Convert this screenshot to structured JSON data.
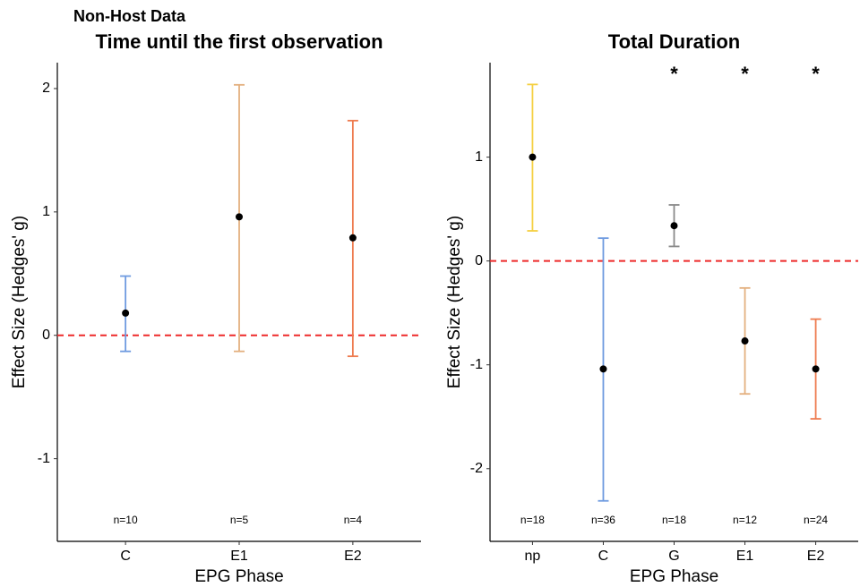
{
  "suptitle": "Non-Host Data",
  "chart_data": [
    {
      "type": "errorbar",
      "title": "Time until the first observation",
      "x_label": "EPG Phase",
      "y_label": "Effect Size (Hedges' g)",
      "categories": [
        "C",
        "E1",
        "E2"
      ],
      "values": [
        0.18,
        0.96,
        0.79
      ],
      "lower": [
        -0.13,
        -0.13,
        -0.17
      ],
      "upper": [
        0.48,
        2.03,
        1.74
      ],
      "colors": [
        "#6f9be0",
        "#e3b07f",
        "#ee7b4f"
      ],
      "n_labels": [
        "n=10",
        "n=5",
        "n=4"
      ],
      "ylim": [
        -1.67,
        2.21
      ],
      "yticks": [
        -1,
        0,
        1,
        2
      ],
      "hline": 0,
      "hline_color": "#ee2a2a"
    },
    {
      "type": "errorbar",
      "title": "Total Duration",
      "x_label": "EPG Phase",
      "y_label": "Effect Size (Hedges' g)",
      "categories": [
        "np",
        "C",
        "G",
        "E1",
        "E2"
      ],
      "values": [
        1.0,
        -1.04,
        0.34,
        -0.77,
        -1.04
      ],
      "lower": [
        0.29,
        -2.31,
        0.14,
        -1.28,
        -1.52
      ],
      "upper": [
        1.7,
        0.22,
        0.54,
        -0.26,
        -0.56
      ],
      "colors": [
        "#f5cf40",
        "#6f9be0",
        "#8a8a8a",
        "#e3b07f",
        "#ee7b4f"
      ],
      "n_labels": [
        "n=18",
        "n=36",
        "n=18",
        "n=12",
        "n=24"
      ],
      "significance": [
        null,
        null,
        "*",
        "*",
        "*"
      ],
      "ylim": [
        -2.7,
        1.91
      ],
      "yticks": [
        -2,
        -1,
        0,
        1
      ],
      "hline": 0,
      "hline_color": "#ee2a2a"
    }
  ]
}
